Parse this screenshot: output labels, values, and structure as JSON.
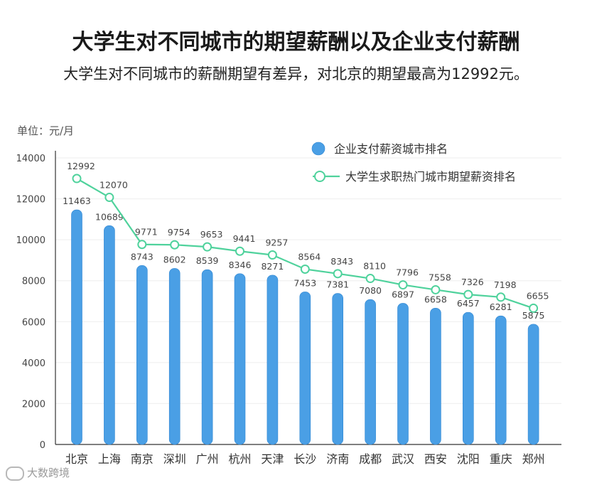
{
  "title": "大学生对不同城市的期望薪酬以及企业支付薪酬",
  "subtitle": "大学生对不同城市的薪酬期望有差异，对北京的期望最高为12992元。",
  "unit_label": "单位：元/月",
  "watermark": "大数跨境",
  "colors": {
    "bar": "#4a9fe5",
    "bar_edge": "#2f86d2",
    "line": "#4fd29c",
    "axis": "#333333",
    "grid": "#eeeeee",
    "label": "#444444"
  },
  "chart_data": {
    "type": "bar",
    "categories": [
      "北京",
      "上海",
      "南京",
      "深圳",
      "广州",
      "杭州",
      "天津",
      "长沙",
      "济南",
      "成都",
      "武汉",
      "西安",
      "沈阳",
      "重庆",
      "郑州"
    ],
    "series": [
      {
        "name": "企业支付薪资城市排名",
        "type": "bar",
        "values": [
          11463,
          10689,
          8743,
          8602,
          8539,
          8346,
          8271,
          7453,
          7381,
          7080,
          6897,
          6658,
          6457,
          6281,
          5875
        ]
      },
      {
        "name": "大学生求职热门城市期望薪资排名",
        "type": "line",
        "values": [
          12992,
          12070,
          9771,
          9754,
          9653,
          9441,
          9257,
          8564,
          8343,
          8110,
          7796,
          7558,
          7326,
          7198,
          6655
        ]
      }
    ],
    "ylim": [
      0,
      14000
    ],
    "yticks": [
      0,
      2000,
      4000,
      6000,
      8000,
      10000,
      12000,
      14000
    ],
    "ylabel": "单位：元/月",
    "xlabel": "",
    "legend_position": "top-right",
    "grid": true
  }
}
